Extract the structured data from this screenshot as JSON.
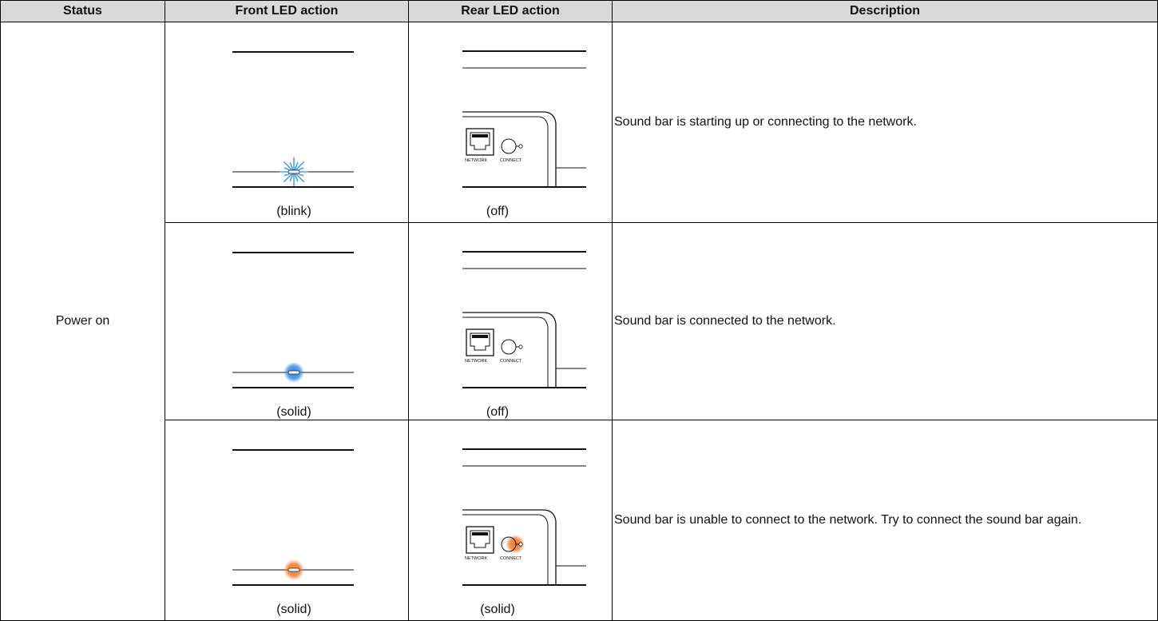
{
  "table": {
    "header": [
      "Status",
      "Front LED action",
      "Rear LED action",
      "Description"
    ],
    "status": "Power on",
    "panel_labels": {
      "network": "NETWORK",
      "connect": "CONNECT"
    },
    "rows": [
      {
        "front_caption": "(blink)",
        "rear_caption": "(off)",
        "description": "Sound bar is starting up or connecting to the network."
      },
      {
        "front_caption": "(solid)",
        "rear_caption": "(off)",
        "description": "Sound bar is connected to the network."
      },
      {
        "front_caption": "(solid)",
        "rear_caption": "(solid)",
        "description": "Sound bar is unable to connect to the network. Try to connect the sound bar again."
      }
    ]
  }
}
